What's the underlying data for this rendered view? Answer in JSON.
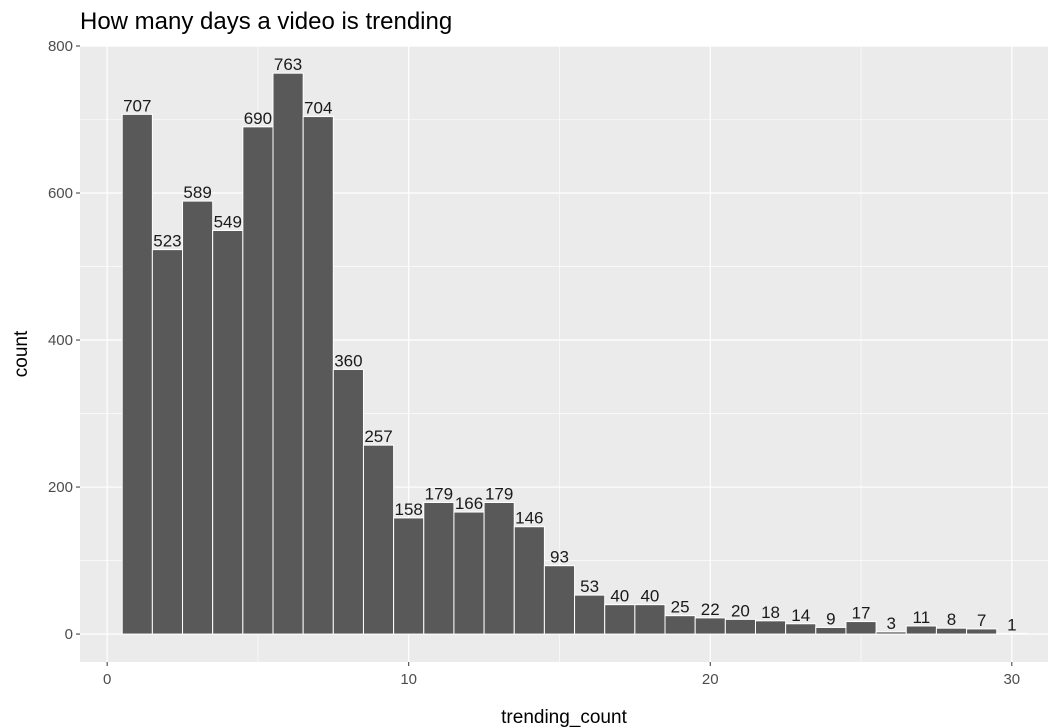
{
  "chart_data": {
    "type": "bar",
    "title": "How many days a video is trending",
    "xlabel": "trending_count",
    "ylabel": "count",
    "x": [
      1,
      2,
      3,
      4,
      5,
      6,
      7,
      8,
      9,
      10,
      11,
      12,
      13,
      14,
      15,
      16,
      17,
      18,
      19,
      20,
      21,
      22,
      23,
      24,
      25,
      26,
      27,
      28,
      29,
      30
    ],
    "values": [
      707,
      523,
      589,
      549,
      690,
      763,
      704,
      360,
      257,
      158,
      179,
      166,
      179,
      146,
      93,
      53,
      40,
      40,
      25,
      22,
      20,
      18,
      14,
      9,
      17,
      3,
      11,
      8,
      7,
      1
    ],
    "xlim": [
      -0.9,
      31.2
    ],
    "ylim": [
      -38,
      800
    ],
    "x_ticks": [
      0,
      10,
      20,
      30
    ],
    "y_ticks": [
      0,
      200,
      400,
      600,
      800
    ],
    "grid": true,
    "colors": {
      "bar": "#595959",
      "panel": "#ebebeb",
      "grid": "#ffffff"
    }
  }
}
